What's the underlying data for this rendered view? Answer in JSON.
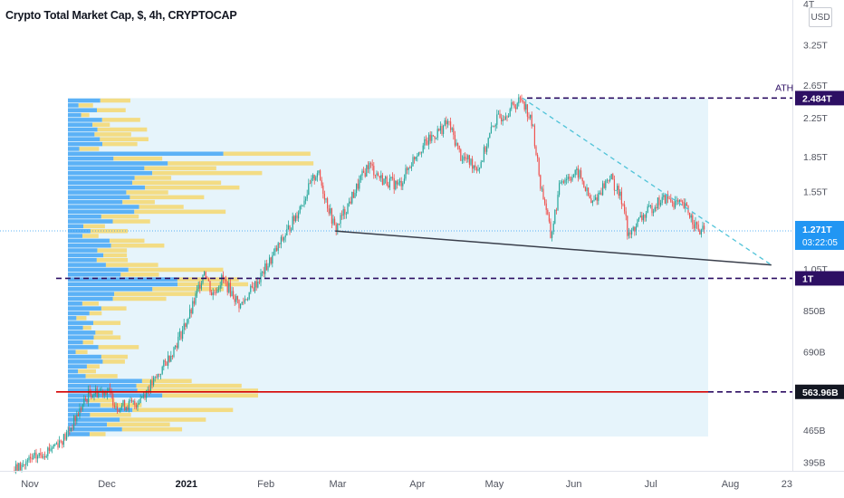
{
  "header": {
    "title": "Crypto Total Market Cap, $, 4h, CRYPTOCAP",
    "currency_button": "USD"
  },
  "colors": {
    "up": "#26a69a",
    "down": "#ef5350",
    "range_fill": "#e6f4fb",
    "vp_blue": "#42a5f5",
    "vp_yellow": "#f5d76e",
    "purple": "#2d0f63",
    "red_line": "#d50000",
    "trendline": "#3a3f4b",
    "cyan_dashed": "#4fc3d8",
    "price_line": "#2196f3"
  },
  "chart_data": {
    "type": "candlestick",
    "title": "Crypto Total Market Cap, $, 4h, CRYPTOCAP",
    "y_axis": {
      "scale": "log",
      "ticks": [
        "4T",
        "3.25T",
        "2.65T",
        "2.25T",
        "1.85T",
        "1.55T",
        "1.05T",
        "850B",
        "690B",
        "465B",
        "395B"
      ],
      "tick_values": [
        4000,
        3250,
        2650,
        2250,
        1850,
        1550,
        1050,
        850,
        690,
        465,
        395
      ],
      "range": [
        360,
        4100
      ]
    },
    "x_axis": {
      "ticks": [
        "Nov",
        "Dec",
        "2021",
        "Feb",
        "Mar",
        "Apr",
        "May",
        "Jun",
        "Jul",
        "Aug",
        "23"
      ],
      "tick_dates": [
        "2020-11-01",
        "2020-12-01",
        "2021-01-01",
        "2021-02-01",
        "2021-03-01",
        "2021-04-01",
        "2021-05-01",
        "2021-06-01",
        "2021-07-01",
        "2021-08-01",
        "2021-08-23"
      ]
    },
    "price_path": [
      [
        "2020-10-26",
        380
      ],
      [
        "2020-11-05",
        410
      ],
      [
        "2020-11-15",
        450
      ],
      [
        "2020-11-24",
        560
      ],
      [
        "2020-12-01",
        570
      ],
      [
        "2020-12-05",
        525
      ],
      [
        "2020-12-12",
        530
      ],
      [
        "2020-12-20",
        600
      ],
      [
        "2020-12-27",
        700
      ],
      [
        "2021-01-03",
        850
      ],
      [
        "2021-01-08",
        1050
      ],
      [
        "2021-01-11",
        920
      ],
      [
        "2021-01-15",
        1000
      ],
      [
        "2021-01-22",
        870
      ],
      [
        "2021-01-29",
        990
      ],
      [
        "2021-02-05",
        1150
      ],
      [
        "2021-02-12",
        1350
      ],
      [
        "2021-02-21",
        1720
      ],
      [
        "2021-02-28",
        1280
      ],
      [
        "2021-03-05",
        1450
      ],
      [
        "2021-03-13",
        1780
      ],
      [
        "2021-03-18",
        1650
      ],
      [
        "2021-03-25",
        1600
      ],
      [
        "2021-04-01",
        1900
      ],
      [
        "2021-04-13",
        2200
      ],
      [
        "2021-04-18",
        1850
      ],
      [
        "2021-04-25",
        1750
      ],
      [
        "2021-05-01",
        2200
      ],
      [
        "2021-05-07",
        2350
      ],
      [
        "2021-05-12",
        2484
      ],
      [
        "2021-05-16",
        2150
      ],
      [
        "2021-05-19",
        1600
      ],
      [
        "2021-05-21",
        1450
      ],
      [
        "2021-05-23",
        1230
      ],
      [
        "2021-05-27",
        1650
      ],
      [
        "2021-06-03",
        1700
      ],
      [
        "2021-06-08",
        1450
      ],
      [
        "2021-06-15",
        1680
      ],
      [
        "2021-06-21",
        1430
      ],
      [
        "2021-06-22",
        1220
      ],
      [
        "2021-06-26",
        1330
      ],
      [
        "2021-07-03",
        1460
      ],
      [
        "2021-07-07",
        1500
      ],
      [
        "2021-07-15",
        1420
      ],
      [
        "2021-07-20",
        1260
      ],
      [
        "2021-07-22",
        1271
      ]
    ],
    "levels": [
      {
        "label": "2.484T",
        "value": 2484,
        "style": "dashed"
      },
      {
        "label": "1T",
        "value": 1000,
        "style": "dashed"
      },
      {
        "label": "563.96B",
        "value": 563.96,
        "style": "solid-then-dashed"
      }
    ],
    "current_price": {
      "label": "1.271T",
      "value": 1271,
      "countdown": "03:22:05"
    },
    "annotations": [
      {
        "text": "ATH"
      }
    ],
    "trendlines": [
      {
        "from": [
          "2021-02-28",
          1270
        ],
        "to": [
          "2021-08-17",
          1070
        ],
        "style": "solid"
      },
      {
        "from": [
          "2021-05-12",
          2484
        ],
        "to": [
          "2021-08-17",
          1070
        ],
        "style": "dashed"
      }
    ],
    "volume_profile": {
      "range": [
        450,
        2484
      ],
      "bars": 70
    }
  }
}
